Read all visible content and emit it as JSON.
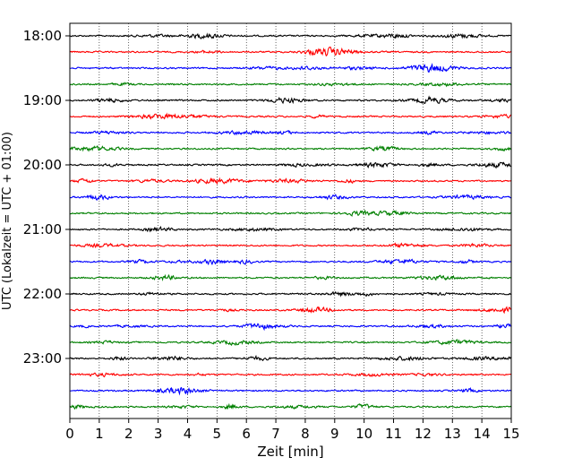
{
  "chart_data": {
    "type": "line",
    "title": "",
    "xlabel": "Zeit  [min]",
    "ylabel": "UTC (Lokalzeit = UTC + 01:00)",
    "xlim": [
      0,
      15
    ],
    "x_ticks": [
      "0",
      "1",
      "2",
      "3",
      "4",
      "5",
      "6",
      "7",
      "8",
      "9",
      "10",
      "11",
      "12",
      "13",
      "14",
      "15"
    ],
    "y_tick_labels": [
      "18:00",
      "19:00",
      "20:00",
      "21:00",
      "22:00",
      "23:00"
    ],
    "start_time": "18:00",
    "trace_interval_minutes": 15,
    "trace_count": 24,
    "trace_colors": [
      "#000000",
      "#ff0000",
      "#0000ff",
      "#008000"
    ],
    "grid": "vertical-dotted",
    "legend": "none"
  }
}
